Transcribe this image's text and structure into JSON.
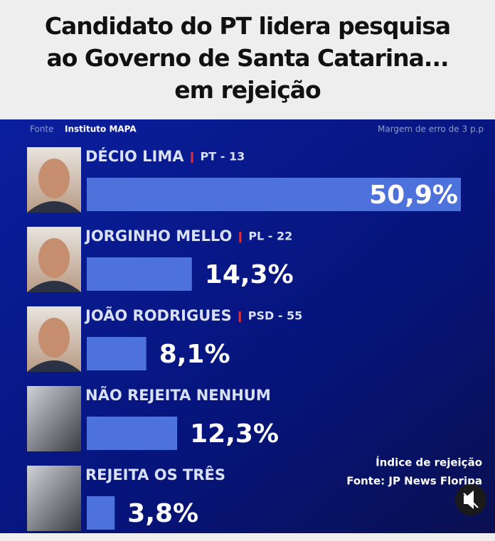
{
  "title": "Candidato do PT lidera pesquisa ao Governo de Santa Catarina... em rejeição",
  "chart_data": {
    "type": "bar",
    "orientation": "horizontal",
    "source_label": "Fonte",
    "source": "Instituto MAPA",
    "margin_note": "Margem de erro de 3 p.p",
    "categories": [
      "DÉCIO LIMA",
      "JORGINHO MELLO",
      "JOÃO RODRIGUES",
      "NÃO REJEITA NENHUM",
      "REJEITA OS TRÊS"
    ],
    "parties": [
      "PT - 13",
      "PL - 22",
      "PSD - 55",
      null,
      null
    ],
    "values": [
      50.9,
      14.3,
      8.1,
      12.3,
      3.8
    ],
    "value_labels": [
      "50,9%",
      "14,3%",
      "8,1%",
      "12,3%",
      "3,8%"
    ],
    "color": "#4d72db",
    "annotation_1": "Índice de rejeição",
    "annotation_2": "Fonte: JP News Floripa"
  }
}
